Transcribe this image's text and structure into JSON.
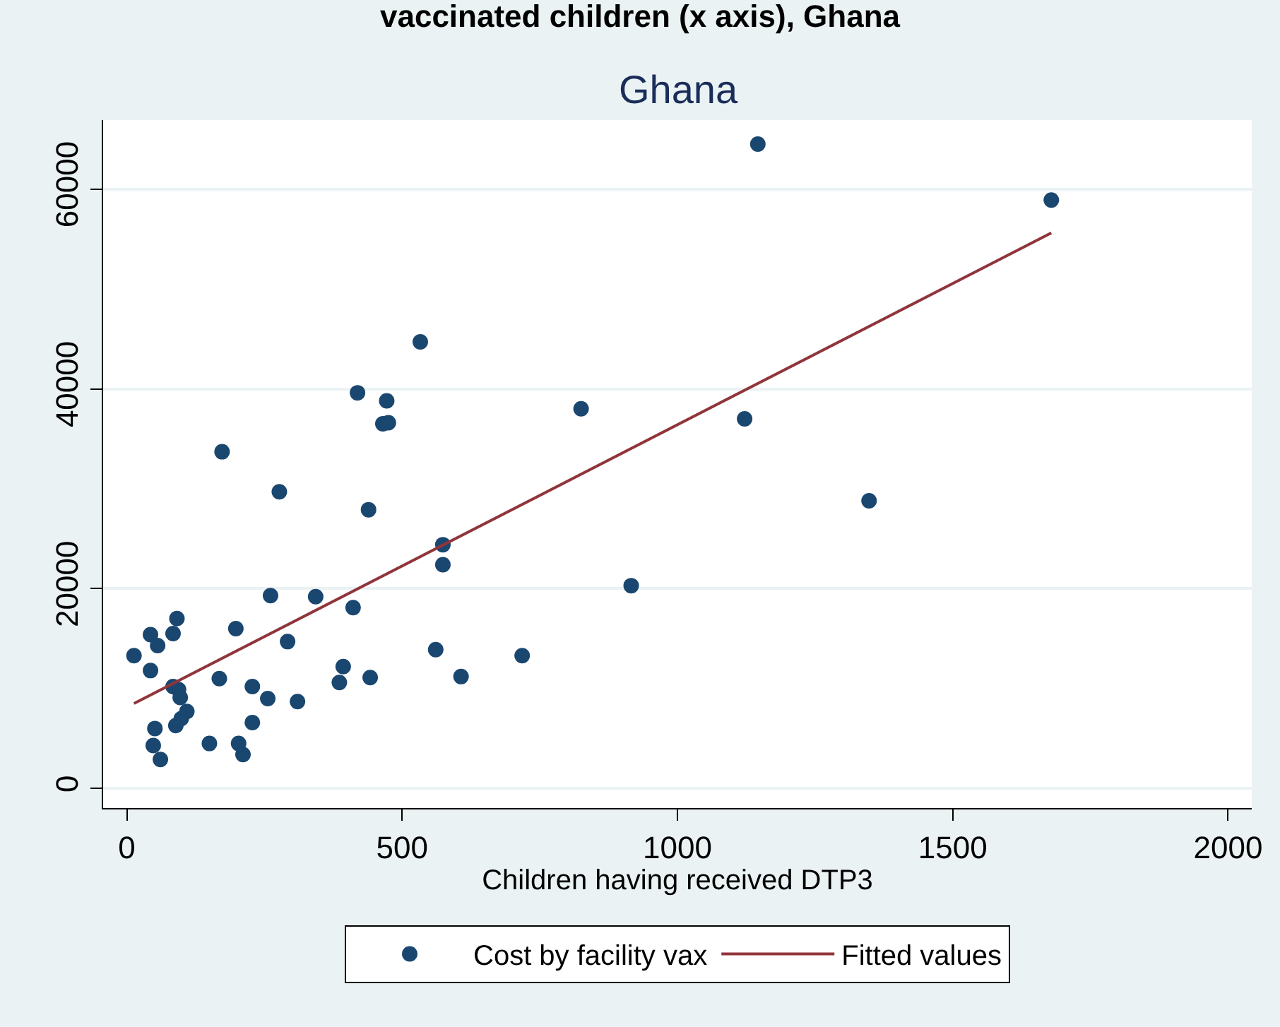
{
  "chart_data": {
    "type": "scatter",
    "title": "vaccinated children (x axis), Ghana",
    "subtitle": "Ghana",
    "xlabel": "Children having received DTP3",
    "xlim": [
      -43,
      2043
    ],
    "xticks": [
      0,
      500,
      1000,
      1500,
      2000
    ],
    "ylim": [
      -1960,
      66900
    ],
    "yticks": [
      0,
      20000,
      40000,
      60000
    ],
    "grid": "y",
    "legend": "bottom",
    "marker": "circle",
    "series": [
      {
        "name": "Cost by facility vax",
        "color": "#1a476f",
        "x": [
          13,
          43,
          56,
          43,
          91,
          84,
          84,
          94,
          97,
          109,
          99,
          89,
          51,
          48,
          61,
          150,
          168,
          198,
          203,
          211,
          228,
          228,
          256,
          261,
          292,
          310,
          343,
          411,
          386,
          393,
          442,
          561,
          574,
          574,
          607,
          173,
          277,
          419,
          472,
          465,
          475,
          439,
          1146,
          1679,
          533,
          825,
          1122,
          1348,
          916,
          718
        ],
        "values": [
          13300,
          15400,
          14300,
          11800,
          17000,
          15500,
          10200,
          9900,
          9100,
          7700,
          7000,
          6300,
          6000,
          4300,
          2900,
          4500,
          11000,
          16000,
          4500,
          3400,
          10200,
          6600,
          9000,
          19300,
          14700,
          8700,
          19200,
          18100,
          10600,
          12200,
          11100,
          13900,
          24400,
          22400,
          11200,
          33700,
          29700,
          39600,
          38800,
          36500,
          36600,
          27900,
          64500,
          58900,
          44700,
          38000,
          37000,
          28800,
          20300,
          13300
        ]
      },
      {
        "name": "Fitted values",
        "color": "#90353b",
        "type": "line",
        "marker": "none",
        "line_style": "solid",
        "x": [
          13,
          1679
        ],
        "values": [
          8500,
          55600
        ]
      }
    ]
  }
}
